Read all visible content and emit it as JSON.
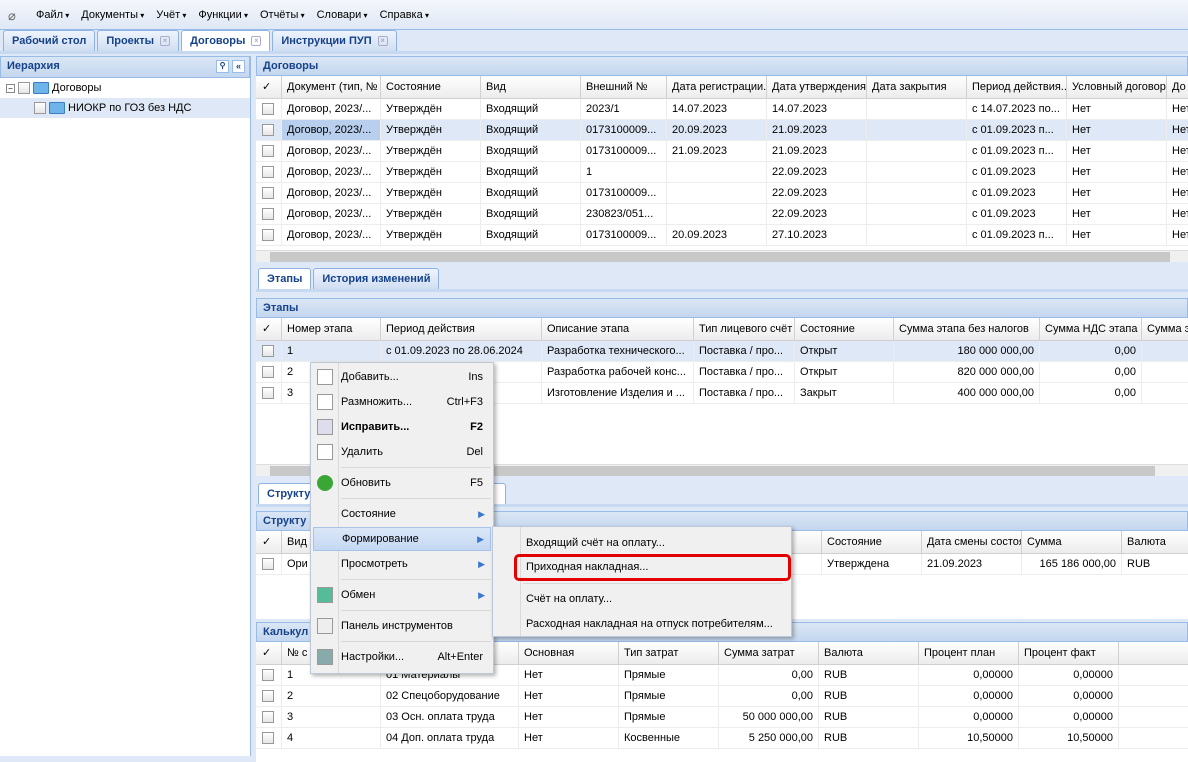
{
  "menu": [
    "Файл",
    "Документы",
    "Учёт",
    "Функции",
    "Отчёты",
    "Словари",
    "Справка"
  ],
  "tabs": [
    {
      "label": "Рабочий стол",
      "closable": false
    },
    {
      "label": "Проекты",
      "closable": true
    },
    {
      "label": "Договоры",
      "closable": true,
      "active": true
    },
    {
      "label": "Инструкции ПУП",
      "closable": true
    }
  ],
  "hierarchy": {
    "title": "Иерархия",
    "items": [
      "Договоры",
      "НИОКР по ГОЗ без НДС"
    ]
  },
  "contracts": {
    "title": "Договоры",
    "columns": [
      "✓",
      "Документ (тип, №",
      "Состояние",
      "Вид",
      "Внешний №",
      "Дата регистрации...",
      "Дата утверждения",
      "Дата закрытия",
      "Период действия...",
      "Условный договор",
      "До"
    ],
    "rows": [
      [
        "Договор, 2023/...",
        "Утверждён",
        "Входящий",
        "2023/1",
        "14.07.2023",
        "14.07.2023",
        "",
        "с 14.07.2023 по...",
        "Нет",
        "Нет"
      ],
      [
        "Договор, 2023/...",
        "Утверждён",
        "Входящий",
        "0173100009...",
        "20.09.2023",
        "21.09.2023",
        "",
        "с 01.09.2023 п...",
        "Нет",
        "Нет"
      ],
      [
        "Договор, 2023/...",
        "Утверждён",
        "Входящий",
        "0173100009...",
        "21.09.2023",
        "21.09.2023",
        "",
        "с 01.09.2023 п...",
        "Нет",
        "Нет"
      ],
      [
        "Договор, 2023/...",
        "Утверждён",
        "Входящий",
        "1",
        "",
        "22.09.2023",
        "",
        "с 01.09.2023",
        "Нет",
        "Нет"
      ],
      [
        "Договор, 2023/...",
        "Утверждён",
        "Входящий",
        "0173100009...",
        "",
        "22.09.2023",
        "",
        "с 01.09.2023",
        "Нет",
        "Нет"
      ],
      [
        "Договор, 2023/...",
        "Утверждён",
        "Входящий",
        "230823/051...",
        "",
        "22.09.2023",
        "",
        "с 01.09.2023",
        "Нет",
        "Нет"
      ],
      [
        "Договор, 2023/...",
        "Утверждён",
        "Входящий",
        "0173100009...",
        "20.09.2023",
        "27.10.2023",
        "",
        "с 01.09.2023 п...",
        "Нет",
        "Нет"
      ]
    ],
    "selected_row": 1
  },
  "stage_tabs": [
    "Этапы",
    "История изменений"
  ],
  "stages": {
    "title": "Этапы",
    "columns": [
      "✓",
      "Номер этапа",
      "Период действия",
      "Описание этапа",
      "Тип лицевого счёт",
      "Состояние",
      "Сумма этапа без налогов",
      "Сумма НДС этапа",
      "Сумма э"
    ],
    "rows": [
      [
        "1",
        "с 01.09.2023 по 28.06.2024",
        "Разработка технического...",
        "Поставка / про...",
        "Открыт",
        "180 000 000,00",
        "0,00",
        ""
      ],
      [
        "2",
        "...2.2024",
        "Разработка рабочей конс...",
        "Поставка / про...",
        "Открыт",
        "820 000 000,00",
        "0,00",
        ""
      ],
      [
        "3",
        "...2.2025",
        "Изготовление Изделия и ...",
        "Поставка / про...",
        "Закрыт",
        "400 000 000,00",
        "0,00",
        ""
      ]
    ],
    "selected_row": 0
  },
  "structure_tab": "Структу",
  "structure": {
    "title": "Структу",
    "columns": [
      "✓",
      "Вид",
      "",
      "о",
      "Состояние",
      "Дата смены состоя",
      "Сумма",
      "Валюта"
    ],
    "rows": [
      [
        "Ори",
        "",
        "",
        "Утверждена",
        "21.09.2023",
        "165 186 000,00",
        "RUB"
      ]
    ]
  },
  "calc": {
    "title": "Калькул",
    "columns": [
      "✓",
      "№ с",
      "",
      "Основная",
      "Тип затрат",
      "Сумма затрат",
      "Валюта",
      "Процент план",
      "Процент факт"
    ],
    "rows": [
      [
        "1",
        "01 Материалы",
        "Нет",
        "Прямые",
        "0,00",
        "RUB",
        "0,00000",
        "0,00000"
      ],
      [
        "2",
        "02 Спецоборудование",
        "Нет",
        "Прямые",
        "0,00",
        "RUB",
        "0,00000",
        "0,00000"
      ],
      [
        "3",
        "03 Осн. оплата труда",
        "Нет",
        "Прямые",
        "50 000 000,00",
        "RUB",
        "0,00000",
        "0,00000"
      ],
      [
        "4",
        "04 Доп. оплата труда",
        "Нет",
        "Косвенные",
        "5 250 000,00",
        "RUB",
        "10,50000",
        "10,50000"
      ]
    ]
  },
  "context_menu": [
    {
      "label": "Добавить...",
      "shortcut": "Ins",
      "icon": "document-new-icon"
    },
    {
      "label": "Размножить...",
      "shortcut": "Ctrl+F3",
      "icon": "document-copy-icon"
    },
    {
      "label": "Исправить...",
      "shortcut": "F2",
      "icon": "document-edit-icon",
      "bold": true
    },
    {
      "label": "Удалить",
      "shortcut": "Del",
      "icon": "document-delete-icon"
    },
    {
      "label": "Обновить",
      "shortcut": "F5",
      "icon": "refresh-icon"
    },
    {
      "label": "Состояние",
      "submenu": true
    },
    {
      "label": "Формирование",
      "submenu": true,
      "highlighted": true
    },
    {
      "label": "Просмотреть",
      "submenu": true
    },
    {
      "label": "Обмен",
      "submenu": true,
      "icon": "exchange-icon"
    },
    {
      "label": "Панель инструментов",
      "icon": "checkbox-icon"
    },
    {
      "label": "Настройки...",
      "shortcut": "Alt+Enter",
      "icon": "wrench-icon"
    }
  ],
  "submenu": [
    "Входящий счёт на оплату...",
    "Приходная накладная...",
    "Счёт на оплату...",
    "Расходная накладная на отпуск потребителям..."
  ],
  "highlight_color": "#e30000"
}
